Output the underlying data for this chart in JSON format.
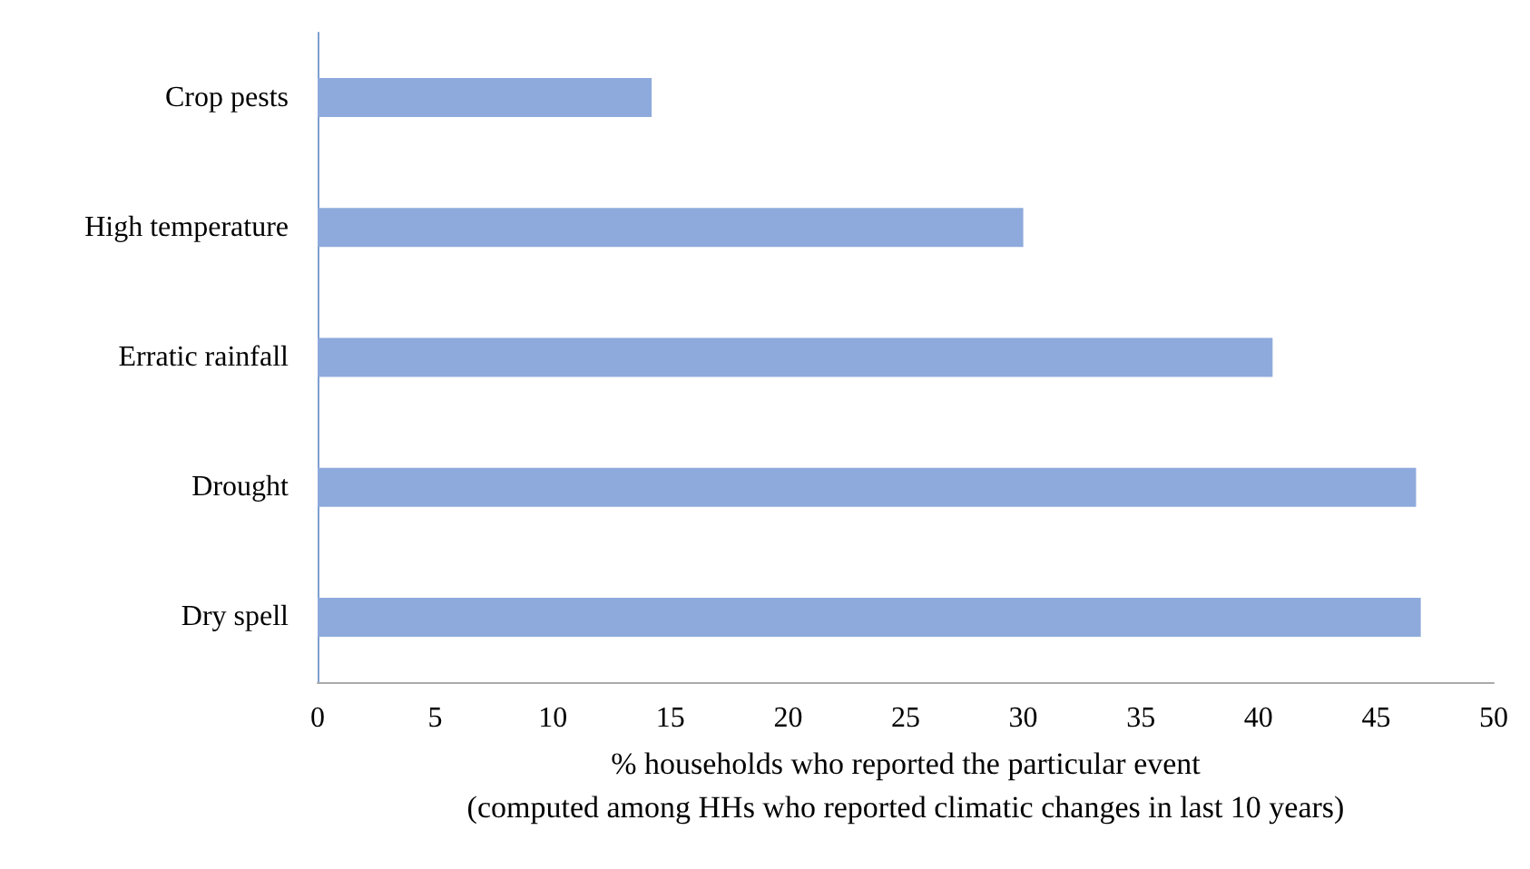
{
  "chart_data": {
    "type": "bar",
    "orientation": "horizontal",
    "categories": [
      "Crop pests",
      "High temperature",
      "Erratic rainfall",
      "Drought",
      "Dry spell"
    ],
    "values": [
      14.2,
      30.0,
      40.6,
      46.7,
      46.9
    ],
    "color": "#8eaadc",
    "xlabel": "% households who reported the particular event\n(computed among HHs who reported climatic changes in last 10 years)",
    "xlim": [
      0,
      50
    ],
    "xticks": [
      0,
      5,
      10,
      15,
      20,
      25,
      30,
      35,
      40,
      45,
      50
    ],
    "grid": false
  }
}
